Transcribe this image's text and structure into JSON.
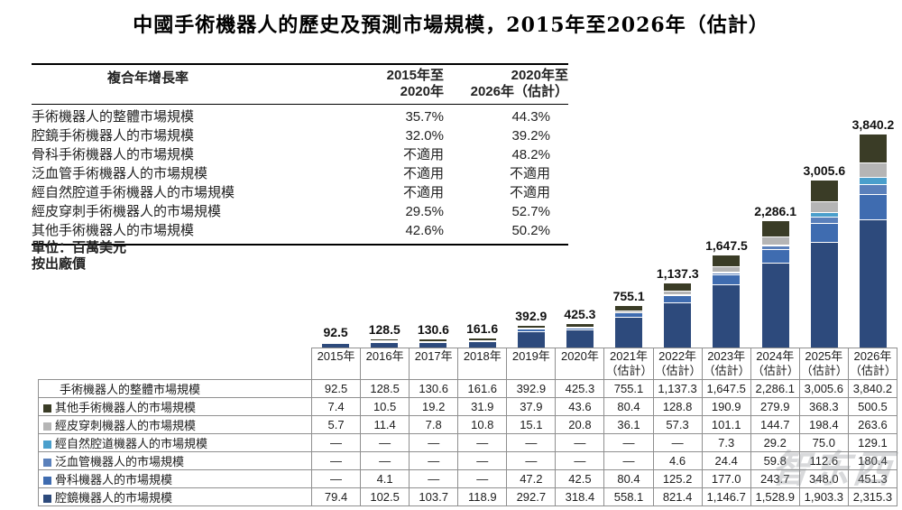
{
  "title": "中國手術機器人的歷史及預測市場規模，2015年至2026年（估計）",
  "unit_note": "單位：百萬美元",
  "price_note": "按出廠價",
  "watermark": "智东西",
  "cagr_table": {
    "header": {
      "col1": "複合年增長率",
      "col2_line1": "2015年至",
      "col2_line2": "2020年",
      "col3_line1": "2020年至",
      "col3_line2": "2026年（估計）"
    },
    "rows": [
      {
        "label": "手術機器人的整體市場規模",
        "cagr_2015_2020": "35.7%",
        "cagr_2020_2026": "44.3%"
      },
      {
        "label": "腔鏡手術機器人的市場規模",
        "cagr_2015_2020": "32.0%",
        "cagr_2020_2026": "39.2%"
      },
      {
        "label": "骨科手術機器人的市場規模",
        "cagr_2015_2020": "不適用",
        "cagr_2020_2026": "48.2%"
      },
      {
        "label": "泛血管手術機器人的市場規模",
        "cagr_2015_2020": "不適用",
        "cagr_2020_2026": "不適用"
      },
      {
        "label": "經自然腔道手術機器人的市場規模",
        "cagr_2015_2020": "不適用",
        "cagr_2020_2026": "不適用"
      },
      {
        "label": "經皮穿刺手術機器人的市場規模",
        "cagr_2015_2020": "29.5%",
        "cagr_2020_2026": "52.7%"
      },
      {
        "label": "其他手術機器人的市場規模",
        "cagr_2015_2020": "42.6%",
        "cagr_2020_2026": "50.2%"
      }
    ]
  },
  "chart_data": {
    "type": "bar",
    "stacked": true,
    "title": "中國手術機器人的歷史及預測市場規模，2015年至2026年（估計）",
    "ylabel": "百萬美元（按出廠價）",
    "legend_position": "bottom-table",
    "grid": false,
    "categories": [
      "2015年",
      "2016年",
      "2017年",
      "2018年",
      "2019年",
      "2020年",
      "2021年（估計）",
      "2022年（估計）",
      "2023年（估計）",
      "2024年（估計）",
      "2025年（估計）",
      "2026年（估計）"
    ],
    "category_lines": [
      {
        "line1": "2015年",
        "line2": ""
      },
      {
        "line1": "2016年",
        "line2": ""
      },
      {
        "line1": "2017年",
        "line2": ""
      },
      {
        "line1": "2018年",
        "line2": ""
      },
      {
        "line1": "2019年",
        "line2": ""
      },
      {
        "line1": "2020年",
        "line2": ""
      },
      {
        "line1": "2021年",
        "line2": "（估計）"
      },
      {
        "line1": "2022年",
        "line2": "（估計）"
      },
      {
        "line1": "2023年",
        "line2": "（估計）"
      },
      {
        "line1": "2024年",
        "line2": "（估計）"
      },
      {
        "line1": "2025年",
        "line2": "（估計）"
      },
      {
        "line1": "2026年",
        "line2": "（估計）"
      }
    ],
    "totals": [
      92.5,
      128.5,
      130.6,
      161.6,
      392.9,
      425.3,
      755.1,
      1137.3,
      1647.5,
      2286.1,
      3005.6,
      3840.2
    ],
    "total_labels": [
      "92.5",
      "128.5",
      "130.6",
      "161.6",
      "392.9",
      "425.3",
      "755.1",
      "1,137.3",
      "1,647.5",
      "2,286.1",
      "3,005.6",
      "3,840.2"
    ],
    "ylim": [
      0,
      3900
    ],
    "series_bottom_to_top": [
      {
        "name": "腔鏡機器人的市場規模",
        "color": "#2d4a7c",
        "values": [
          79.4,
          102.5,
          103.7,
          118.9,
          292.7,
          318.4,
          558.1,
          821.4,
          1146.7,
          1528.9,
          1903.3,
          2315.3
        ]
      },
      {
        "name": "骨科機器人的市場規模",
        "color": "#3f6cb0",
        "values": [
          0,
          4.1,
          0,
          0,
          47.2,
          42.5,
          80.4,
          125.2,
          177.0,
          243.7,
          348.0,
          451.3
        ]
      },
      {
        "name": "泛血管機器人的市場規模",
        "color": "#5a80bb",
        "values": [
          0,
          0,
          0,
          0,
          0,
          0,
          0,
          4.6,
          24.4,
          59.8,
          112.6,
          180.4
        ]
      },
      {
        "name": "經自然腔道機器人的市場規模",
        "color": "#4a9fcc",
        "values": [
          0,
          0,
          0,
          0,
          0,
          0,
          0,
          0,
          7.3,
          29.2,
          75.0,
          129.1
        ]
      },
      {
        "name": "經皮穿刺機器人的市場規模",
        "color": "#b5b5b5",
        "values": [
          5.7,
          11.4,
          7.8,
          10.8,
          15.1,
          20.8,
          36.1,
          57.3,
          101.1,
          144.7,
          198.4,
          263.6
        ]
      },
      {
        "name": "其他手術機器人的市場規模",
        "color": "#3a3c26",
        "values": [
          7.4,
          10.5,
          19.2,
          31.9,
          37.9,
          43.6,
          80.4,
          128.8,
          190.9,
          279.9,
          368.3,
          500.5
        ]
      }
    ]
  },
  "bottom_table": {
    "rows": [
      {
        "label": "手術機器人的整體市場規模",
        "swatch": null,
        "cells": [
          "92.5",
          "128.5",
          "130.6",
          "161.6",
          "392.9",
          "425.3",
          "755.1",
          "1,137.3",
          "1,647.5",
          "2,286.1",
          "3,005.6",
          "3,840.2"
        ]
      },
      {
        "label": "其他手術機器人的市場規模",
        "swatch": "#3a3c26",
        "cells": [
          "7.4",
          "10.5",
          "19.2",
          "31.9",
          "37.9",
          "43.6",
          "80.4",
          "128.8",
          "190.9",
          "279.9",
          "368.3",
          "500.5"
        ]
      },
      {
        "label": "經皮穿刺機器人的市場規模",
        "swatch": "#b5b5b5",
        "cells": [
          "5.7",
          "11.4",
          "7.8",
          "10.8",
          "15.1",
          "20.8",
          "36.1",
          "57.3",
          "101.1",
          "144.7",
          "198.4",
          "263.6"
        ]
      },
      {
        "label": "經自然腔道機器人的市場規模",
        "swatch": "#4a9fcc",
        "cells": [
          "—",
          "—",
          "—",
          "—",
          "—",
          "—",
          "—",
          "—",
          "7.3",
          "29.2",
          "75.0",
          "129.1"
        ]
      },
      {
        "label": "泛血管機器人的市場規模",
        "swatch": "#5a80bb",
        "cells": [
          "—",
          "—",
          "—",
          "—",
          "—",
          "—",
          "—",
          "4.6",
          "24.4",
          "59.8",
          "112.6",
          "180.4"
        ]
      },
      {
        "label": "骨科機器人的市場規模",
        "swatch": "#3f6cb0",
        "cells": [
          "—",
          "4.1",
          "—",
          "—",
          "47.2",
          "42.5",
          "80.4",
          "125.2",
          "177.0",
          "243.7",
          "348.0",
          "451.3"
        ]
      },
      {
        "label": "腔鏡機器人的市場規模",
        "swatch": "#2d4a7c",
        "cells": [
          "79.4",
          "102.5",
          "103.7",
          "118.9",
          "292.7",
          "318.4",
          "558.1",
          "821.4",
          "1,146.7",
          "1,528.9",
          "1,903.3",
          "2,315.3"
        ]
      }
    ]
  }
}
